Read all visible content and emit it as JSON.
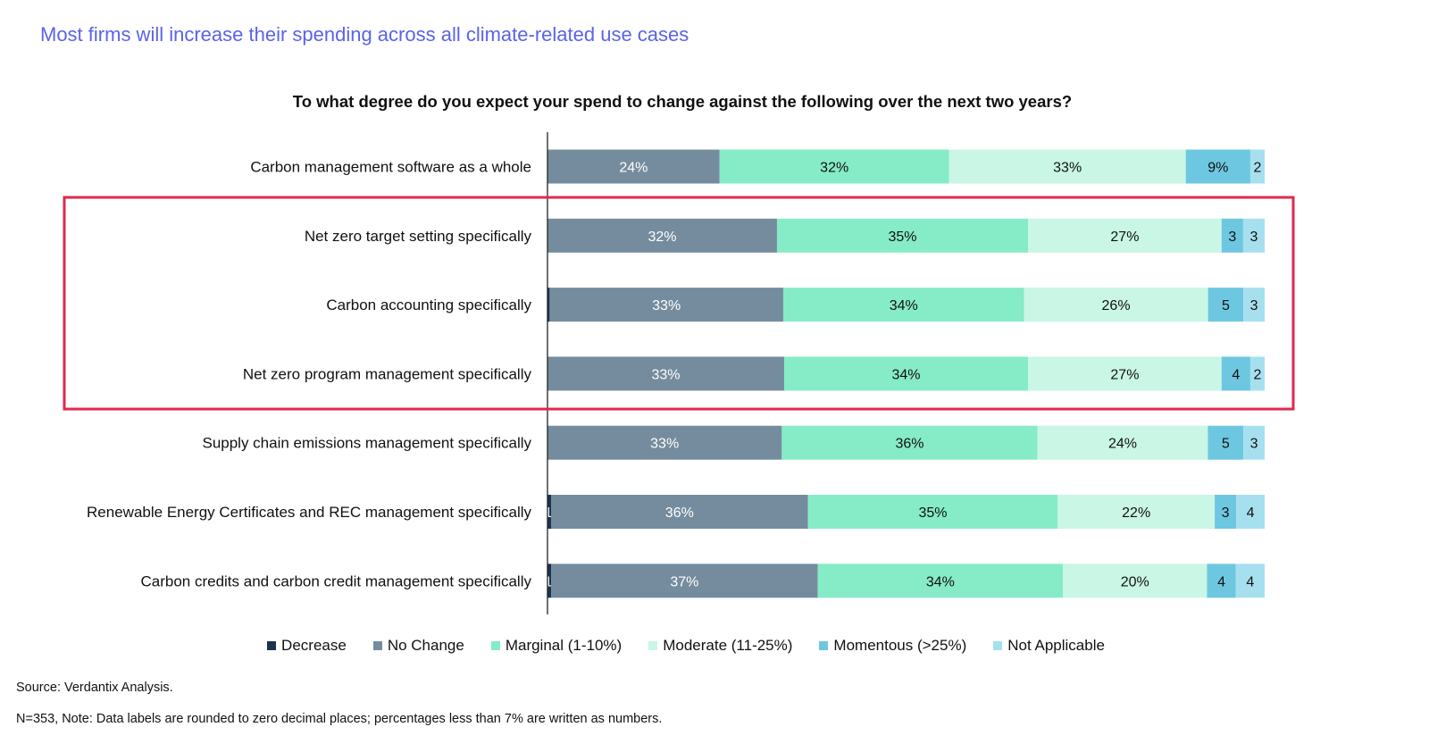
{
  "headline": "Most firms will increase their spending across all climate-related use cases",
  "footer": {
    "source": "Source: Verdantix Analysis.",
    "note": "N=353, Note: Data labels are rounded to zero decimal places; percentages less than 7% are written as numbers."
  },
  "colors": {
    "highlight_box": "#e0284f",
    "axis_line": "#222222"
  },
  "chart_data": {
    "type": "bar",
    "orientation": "horizontal",
    "stacked": true,
    "normalized": "percent",
    "title": "To what degree do you expect your spend to change against the following over the next two years?",
    "legend_position": "bottom",
    "grid": false,
    "categories": [
      "Carbon management software as a whole",
      "Net zero target setting specifically",
      "Carbon accounting specifically",
      "Net zero program management specifically",
      "Supply chain emissions management specifically",
      "Renewable Energy Certificates and REC management specifically",
      "Carbon credits and carbon credit management specifically"
    ],
    "highlighted_categories": [
      1,
      2,
      3
    ],
    "series": [
      {
        "name": "Decrease",
        "color": "#1b3350",
        "text_color": "#ffffff",
        "values": [
          0,
          0,
          0.3,
          0,
          0,
          0.5,
          0.5
        ],
        "labels": [
          "",
          "",
          "",
          "",
          "",
          "1",
          "1"
        ]
      },
      {
        "name": "No Change",
        "color": "#758c9e",
        "text_color": "#ffffff",
        "values": [
          24,
          32,
          33,
          33,
          33,
          36,
          37
        ],
        "labels": [
          "24%",
          "32%",
          "33%",
          "33%",
          "33%",
          "36%",
          "37%"
        ]
      },
      {
        "name": "Marginal (1-10%)",
        "color": "#86ebc7",
        "text_color": "#111111",
        "values": [
          32,
          35,
          34,
          34,
          36,
          35,
          34
        ],
        "labels": [
          "32%",
          "35%",
          "34%",
          "34%",
          "36%",
          "35%",
          "34%"
        ]
      },
      {
        "name": "Moderate (11-25%)",
        "color": "#c9f6e5",
        "text_color": "#111111",
        "values": [
          33,
          27,
          26,
          27,
          24,
          22,
          20
        ],
        "labels": [
          "33%",
          "27%",
          "26%",
          "27%",
          "24%",
          "22%",
          "20%"
        ]
      },
      {
        "name": "Momentous (>25%)",
        "color": "#6ec7e0",
        "text_color": "#111111",
        "values": [
          9,
          3,
          5,
          4,
          5,
          3,
          4
        ],
        "labels": [
          "9%",
          "3",
          "5",
          "4",
          "5",
          "3",
          "4"
        ]
      },
      {
        "name": "Not Applicable",
        "color": "#a6e0ef",
        "text_color": "#111111",
        "values": [
          2,
          3,
          3,
          2,
          3,
          4,
          4
        ],
        "labels": [
          "2",
          "3",
          "3",
          "2",
          "3",
          "4",
          "4"
        ]
      }
    ]
  }
}
